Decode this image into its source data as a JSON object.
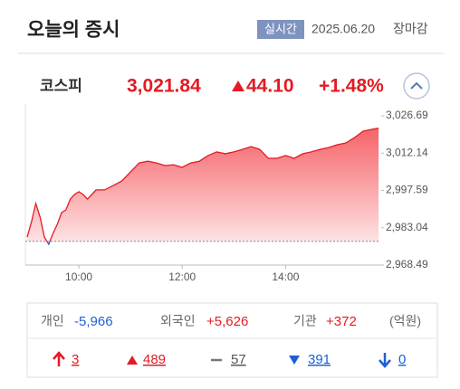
{
  "header": {
    "title": "오늘의 증시",
    "badge": "실시간",
    "date": "2025.06.20",
    "status": "장마감"
  },
  "index": {
    "name": "코스피",
    "price": "3,021.84",
    "change": "44.10",
    "change_pct": "+1.48%"
  },
  "chart_data": {
    "type": "area",
    "x": [
      "09:00",
      "09:05",
      "09:10",
      "09:15",
      "09:20",
      "09:25",
      "09:30",
      "09:35",
      "09:40",
      "09:45",
      "09:50",
      "09:55",
      "10:00",
      "10:05",
      "10:10",
      "10:20",
      "10:30",
      "10:40",
      "10:50",
      "11:00",
      "11:10",
      "11:20",
      "11:30",
      "11:40",
      "11:50",
      "12:00",
      "12:10",
      "12:20",
      "12:30",
      "12:40",
      "12:50",
      "13:00",
      "13:10",
      "13:20",
      "13:30",
      "13:40",
      "13:50",
      "14:00",
      "14:10",
      "14:20",
      "14:30",
      "14:40",
      "14:50",
      "15:00",
      "15:10",
      "15:20",
      "15:30",
      "15:40",
      "15:48"
    ],
    "values": [
      2979.4,
      2985.4,
      2992.5,
      2987.2,
      2979.4,
      2976.6,
      2980.8,
      2984.4,
      2988.9,
      2990.0,
      2994.2,
      2996.0,
      2997.1,
      2996.0,
      2994.2,
      2997.8,
      2997.8,
      2999.5,
      3001.3,
      3004.8,
      3008.3,
      3009.0,
      3008.3,
      3007.3,
      3007.6,
      3006.6,
      3008.3,
      3009.0,
      3011.2,
      3012.6,
      3011.9,
      3012.6,
      3013.6,
      3014.7,
      3013.6,
      3010.1,
      3010.1,
      3011.2,
      3010.1,
      3011.9,
      3012.6,
      3013.6,
      3014.3,
      3015.4,
      3016.1,
      3018.2,
      3020.7,
      3021.4,
      3021.84
    ],
    "baseline": 2977.74,
    "up_color": "#e31b23",
    "down_color": "#1d5fd6",
    "xlim": [
      "09:00",
      "15:50"
    ],
    "xticks": [
      "10:00",
      "12:00",
      "14:00"
    ],
    "ylim": [
      2968.49,
      3026.69
    ],
    "yticks": [
      {
        "value": 2968.49,
        "label": "2,968.49"
      },
      {
        "value": 2983.04,
        "label": "2,983.04"
      },
      {
        "value": 2997.59,
        "label": "2,997.59"
      },
      {
        "value": 3012.14,
        "label": "3,012.14"
      },
      {
        "value": 3026.69,
        "label": "3,026.69"
      }
    ],
    "grid": false
  },
  "investors": [
    {
      "label": "개인",
      "value": "-5,966"
    },
    {
      "label": "외국인",
      "value": "+5,626"
    },
    {
      "label": "기관",
      "value": "+372"
    }
  ],
  "unit": "(억원)",
  "breadth": [
    "3",
    "489",
    "57",
    "391",
    "0"
  ]
}
